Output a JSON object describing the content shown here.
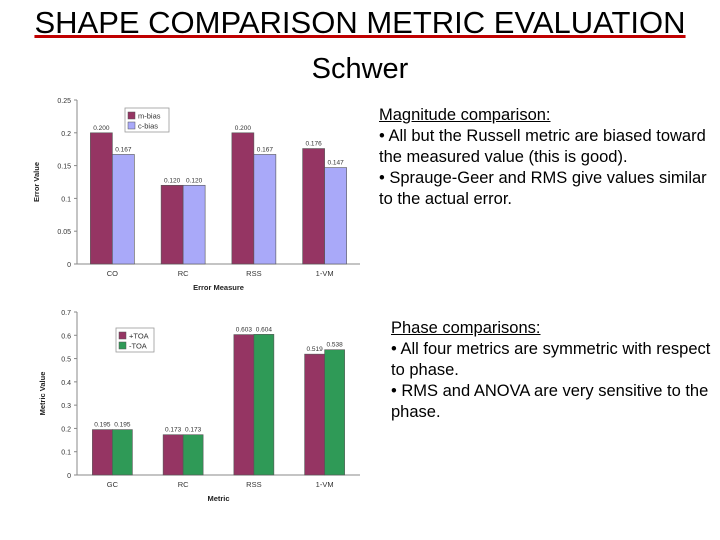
{
  "title": "SHAPE COMPARISON METRIC EVALUATION",
  "subtitle": "Schwer",
  "magnitude": {
    "heading": "Magnitude comparison:",
    "bullets": [
      "• All but the Russell metric are biased toward the measured value (this is good).",
      "• Sprauge-Geer and RMS give values similar to the actual error."
    ]
  },
  "phase": {
    "heading": "Phase comparisons:",
    "bullets": [
      "• All four metrics are symmetric with respect to phase.",
      "• RMS and ANOVA are very sensitive to the phase."
    ]
  },
  "chart_data": [
    {
      "type": "bar",
      "categories": [
        "CO",
        "RC",
        "RSS",
        "1-VM"
      ],
      "series": [
        {
          "name": "m-bias",
          "values": [
            0.2,
            0.12,
            0.2,
            0.176
          ],
          "labels": [
            "0.200",
            "0.120",
            "0.200",
            "0.176"
          ]
        },
        {
          "name": "c-bias",
          "values": [
            0.167,
            0.12,
            0.167,
            0.147
          ],
          "labels": [
            "0.167",
            "0.120",
            "0.167",
            "0.147"
          ]
        }
      ],
      "colors": [
        "#953563",
        "#a9a9f9"
      ],
      "xlabel": "Error Measure",
      "ylabel": "Error Value",
      "ylim": [
        0,
        0.25
      ],
      "yticks": [
        0,
        0.05,
        0.1,
        0.15,
        0.2,
        0.25
      ],
      "ytick_labels": [
        "0",
        "0.05",
        "0.1",
        "0.15",
        "0.2",
        "0.25"
      ],
      "legend": "top-left",
      "grid": false
    },
    {
      "type": "bar",
      "categories": [
        "GC",
        "RC",
        "RSS",
        "1-VM"
      ],
      "series": [
        {
          "name": "+TOA",
          "values": [
            0.195,
            0.173,
            0.603,
            0.519
          ],
          "labels": [
            "0.195",
            "0.173",
            "0.603",
            "0.519"
          ]
        },
        {
          "name": "-TOA",
          "values": [
            0.195,
            0.173,
            0.604,
            0.538
          ],
          "labels": [
            "0.195",
            "0.173",
            "0.604",
            "0.538"
          ]
        }
      ],
      "colors": [
        "#953563",
        "#2f9a57"
      ],
      "xlabel": "Metric",
      "ylabel": "Metric Value",
      "ylim": [
        0,
        0.7
      ],
      "yticks": [
        0,
        0.1,
        0.2,
        0.3,
        0.4,
        0.5,
        0.6,
        0.7
      ],
      "ytick_labels": [
        "0",
        "0.1",
        "0.2",
        "0.3",
        "0.4",
        "0.5",
        "0.6",
        "0.7"
      ],
      "legend": "top-left",
      "grid": false
    }
  ]
}
